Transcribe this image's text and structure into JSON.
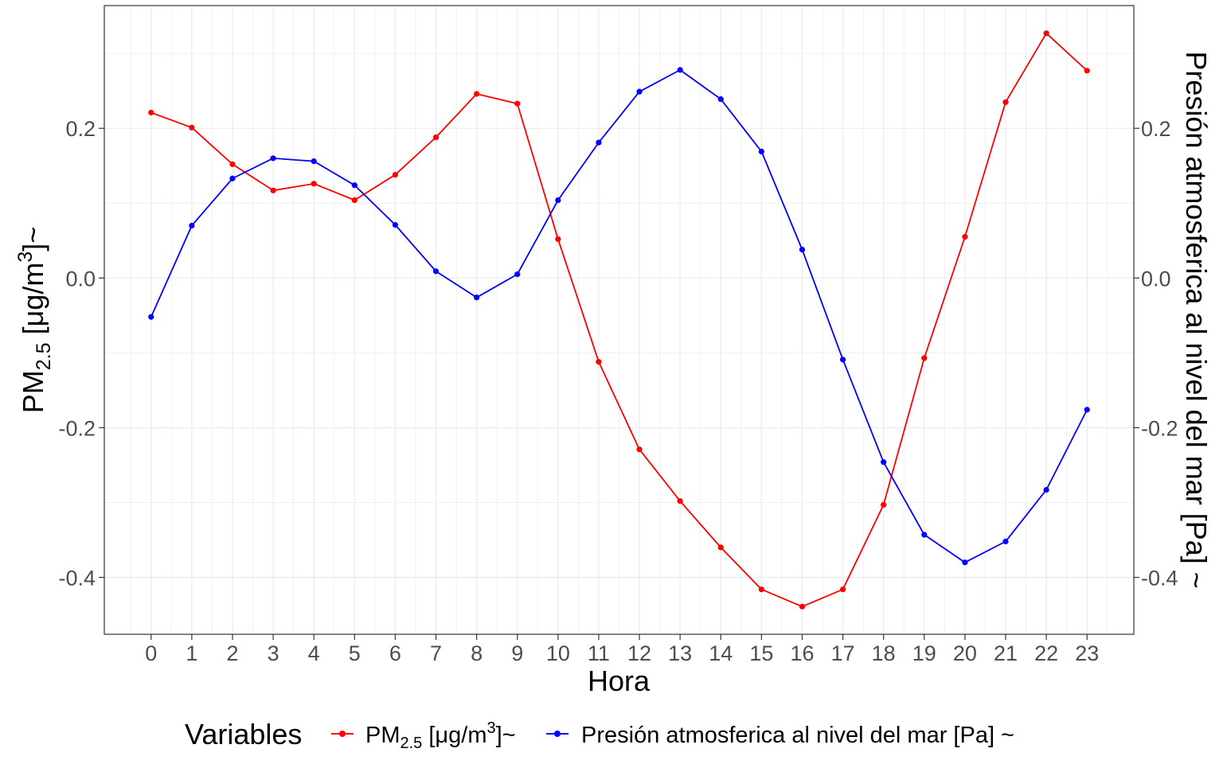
{
  "chart_data": {
    "type": "line",
    "x": [
      0,
      1,
      2,
      3,
      4,
      5,
      6,
      7,
      8,
      9,
      10,
      11,
      12,
      13,
      14,
      15,
      16,
      17,
      18,
      19,
      20,
      21,
      22,
      23
    ],
    "x_ticks": [
      "0",
      "1",
      "2",
      "3",
      "4",
      "5",
      "6",
      "7",
      "8",
      "9",
      "10",
      "11",
      "12",
      "13",
      "14",
      "15",
      "16",
      "17",
      "18",
      "19",
      "20",
      "21",
      "22",
      "23"
    ],
    "xlim": [
      -1.15,
      24.15
    ],
    "ylim": [
      -0.476,
      0.364
    ],
    "y_ticks": [
      -0.4,
      -0.2,
      0.0,
      0.2
    ],
    "y_tick_labels": [
      "-0.4",
      "-0.2",
      "0.0",
      "0.2"
    ],
    "y2_tick_labels": [
      "-0.4",
      "-0.2",
      "0.0",
      "0.2"
    ],
    "xlabel": "Hora",
    "ylabel": {
      "main": "PM",
      "sub": "2.5",
      "unit_start": " [μg/m",
      "sup": "3",
      "unit_end": "]~"
    },
    "y2label": "Presión atmosferica al nivel del mar [Pa] ~",
    "grid": true,
    "legend_position": "bottom",
    "legend_title": "Variables",
    "series": [
      {
        "key": "pm25",
        "name": {
          "main": "PM",
          "sub": "2.5",
          "unit_start": " [μg/m",
          "sup": "3",
          "unit_end": "]~"
        },
        "color": "#ff0000",
        "values": [
          0.221,
          0.201,
          0.152,
          0.117,
          0.126,
          0.104,
          0.138,
          0.188,
          0.246,
          0.233,
          0.052,
          -0.112,
          -0.229,
          -0.298,
          -0.36,
          -0.416,
          -0.439,
          -0.416,
          -0.303,
          -0.107,
          0.055,
          0.235,
          0.327,
          0.277
        ]
      },
      {
        "key": "pressure",
        "name": "Presión atmosferica al nivel del mar [Pa] ~",
        "color": "#0000ff",
        "values": [
          -0.052,
          0.07,
          0.133,
          0.16,
          0.156,
          0.124,
          0.071,
          0.009,
          -0.026,
          0.005,
          0.104,
          0.181,
          0.249,
          0.278,
          0.239,
          0.169,
          0.038,
          -0.109,
          -0.246,
          -0.343,
          -0.38,
          -0.352,
          -0.283,
          -0.176
        ]
      }
    ]
  }
}
